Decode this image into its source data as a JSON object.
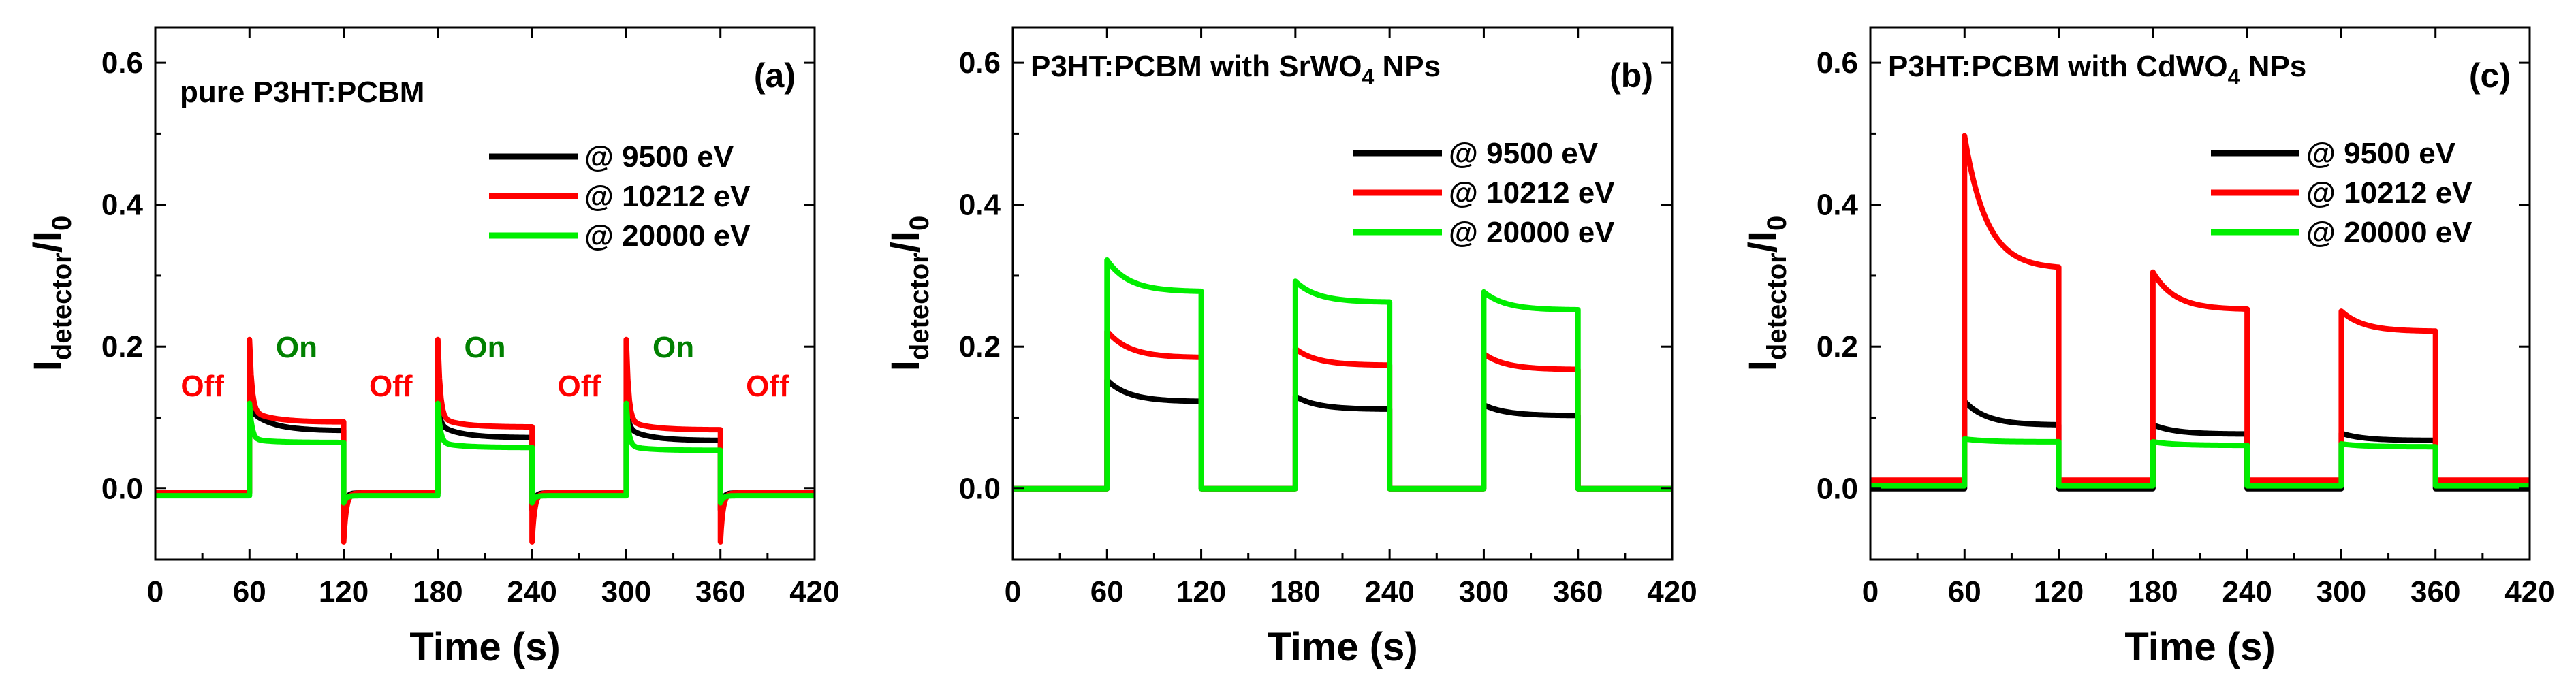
{
  "chart_data": [
    {
      "type": "line",
      "panel_label": "(a)",
      "title": "pure P3HT:PCBM",
      "xlabel": "Time (s)",
      "ylabel_main": "I",
      "ylabel_sub": "detector",
      "ylabel_tail": "/I",
      "ylabel_tail_sub": "0",
      "xlim": [
        0,
        420
      ],
      "ylim": [
        -0.1,
        0.65
      ],
      "xticks": [
        0,
        60,
        120,
        180,
        240,
        300,
        360,
        420
      ],
      "yticks": [
        0.0,
        0.2,
        0.4,
        0.6
      ],
      "ytick_labels": [
        "0.0",
        "0.2",
        "0.4",
        "0.6"
      ],
      "legend": [
        {
          "label": "@   9500 eV",
          "color": "#000000"
        },
        {
          "label": "@ 10212 eV",
          "color": "#ff0000"
        },
        {
          "label": "@ 20000 eV",
          "color": "#00ee00"
        }
      ],
      "annotations": [
        {
          "text": "Off",
          "x": 30,
          "y": 0.13,
          "color": "#ff0000"
        },
        {
          "text": "On",
          "x": 90,
          "y": 0.185,
          "color": "#008000"
        },
        {
          "text": "Off",
          "x": 150,
          "y": 0.13,
          "color": "#ff0000"
        },
        {
          "text": "On",
          "x": 210,
          "y": 0.185,
          "color": "#008000"
        },
        {
          "text": "Off",
          "x": 270,
          "y": 0.13,
          "color": "#ff0000"
        },
        {
          "text": "On",
          "x": 330,
          "y": 0.185,
          "color": "#008000"
        },
        {
          "text": "Off",
          "x": 390,
          "y": 0.13,
          "color": "#ff0000"
        }
      ],
      "series": [
        {
          "name": "@   9500 eV",
          "color": "#000000",
          "off": -0.006,
          "on": [
            {
              "start": 0.11,
              "end": 0.082
            },
            {
              "start": 0.09,
              "end": 0.072
            },
            {
              "start": 0.085,
              "end": 0.068
            }
          ],
          "spike_on": 0.12,
          "spike_off": -0.03
        },
        {
          "name": "@ 10212 eV",
          "color": "#ff0000",
          "off": -0.006,
          "on": [
            {
              "start": 0.11,
              "end": 0.094
            },
            {
              "start": 0.1,
              "end": 0.087
            },
            {
              "start": 0.096,
              "end": 0.083
            }
          ],
          "spike_on": 0.21,
          "spike_off": -0.075
        },
        {
          "name": "@ 20000 eV",
          "color": "#00ee00",
          "off": -0.01,
          "on": [
            {
              "start": 0.07,
              "end": 0.065
            },
            {
              "start": 0.065,
              "end": 0.058
            },
            {
              "start": 0.06,
              "end": 0.054
            }
          ],
          "spike_on": 0.12,
          "spike_off": -0.02
        }
      ]
    },
    {
      "type": "line",
      "panel_label": "(b)",
      "title_main": "P3HT:PCBM with SrWO",
      "title_sub": "4",
      "title_tail": " NPs",
      "xlabel": "Time (s)",
      "ylabel_main": "I",
      "ylabel_sub": "detector",
      "ylabel_tail": "/I",
      "ylabel_tail_sub": "0",
      "xlim": [
        0,
        420
      ],
      "ylim": [
        -0.1,
        0.65
      ],
      "xticks": [
        0,
        60,
        120,
        180,
        240,
        300,
        360,
        420
      ],
      "yticks": [
        0.0,
        0.2,
        0.4,
        0.6
      ],
      "ytick_labels": [
        "0.0",
        "0.2",
        "0.4",
        "0.6"
      ],
      "legend": [
        {
          "label": "@   9500 eV",
          "color": "#000000"
        },
        {
          "label": "@ 10212 eV",
          "color": "#ff0000"
        },
        {
          "label": "@ 20000 eV",
          "color": "#00ee00"
        }
      ],
      "series": [
        {
          "name": "@   9500 eV",
          "color": "#000000",
          "off": 0.0,
          "on": [
            {
              "start": 0.153,
              "end": 0.123
            },
            {
              "start": 0.13,
              "end": 0.112
            },
            {
              "start": 0.118,
              "end": 0.103
            }
          ]
        },
        {
          "name": "@ 10212 eV",
          "color": "#ff0000",
          "off": 0.0,
          "on": [
            {
              "start": 0.222,
              "end": 0.185
            },
            {
              "start": 0.197,
              "end": 0.174
            },
            {
              "start": 0.19,
              "end": 0.168
            }
          ]
        },
        {
          "name": "@ 20000 eV",
          "color": "#00ee00",
          "off": 0.0,
          "on": [
            {
              "start": 0.322,
              "end": 0.278
            },
            {
              "start": 0.292,
              "end": 0.263
            },
            {
              "start": 0.277,
              "end": 0.252
            }
          ]
        }
      ]
    },
    {
      "type": "line",
      "panel_label": "(c)",
      "title_main": "P3HT:PCBM with CdWO",
      "title_sub": "4",
      "title_tail": " NPs",
      "xlabel": "Time (s)",
      "ylabel_main": "I",
      "ylabel_sub": "detector",
      "ylabel_tail": "/I",
      "ylabel_tail_sub": "0",
      "xlim": [
        0,
        420
      ],
      "ylim": [
        -0.1,
        0.65
      ],
      "xticks": [
        0,
        60,
        120,
        180,
        240,
        300,
        360,
        420
      ],
      "yticks": [
        0.0,
        0.2,
        0.4,
        0.6
      ],
      "ytick_labels": [
        "0.0",
        "0.2",
        "0.4",
        "0.6"
      ],
      "legend": [
        {
          "label": "@   9500 eV",
          "color": "#000000"
        },
        {
          "label": "@ 10212 eV",
          "color": "#ff0000"
        },
        {
          "label": "@ 20000 eV",
          "color": "#00ee00"
        }
      ],
      "series": [
        {
          "name": "@   9500 eV",
          "color": "#000000",
          "off": 0.0,
          "on": [
            {
              "start": 0.123,
              "end": 0.09
            },
            {
              "start": 0.09,
              "end": 0.077
            },
            {
              "start": 0.078,
              "end": 0.068
            }
          ]
        },
        {
          "name": "@ 10212 eV",
          "color": "#ff0000",
          "off": 0.012,
          "on": [
            {
              "start": 0.497,
              "end": 0.312
            },
            {
              "start": 0.305,
              "end": 0.253
            },
            {
              "start": 0.25,
              "end": 0.222
            }
          ]
        },
        {
          "name": "@ 20000 eV",
          "color": "#00ee00",
          "off": 0.004,
          "on": [
            {
              "start": 0.07,
              "end": 0.066
            },
            {
              "start": 0.066,
              "end": 0.061
            },
            {
              "start": 0.063,
              "end": 0.059
            }
          ]
        }
      ]
    }
  ]
}
